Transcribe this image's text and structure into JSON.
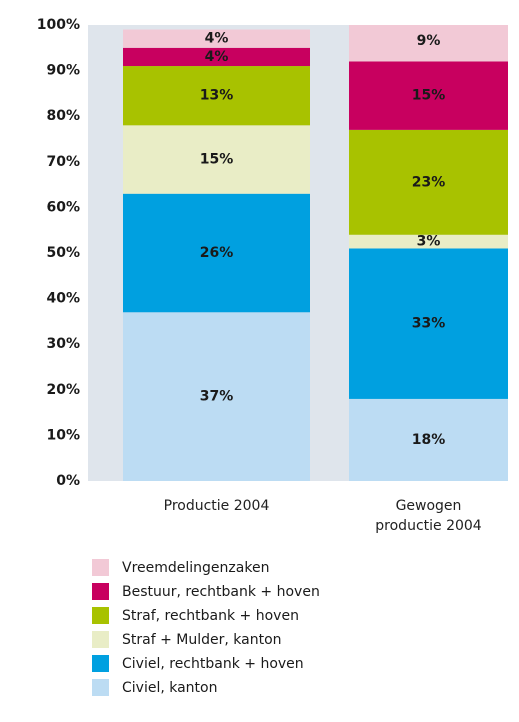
{
  "chart_data": {
    "type": "stacked_bar",
    "categories": [
      "Productie 2004",
      "Gewogen productie 2004"
    ],
    "series": [
      {
        "name": "Civiel, kanton",
        "color": "#bcdcf3",
        "values": [
          37,
          18
        ],
        "value_labels": [
          "37%",
          "18%"
        ]
      },
      {
        "name": "Civiel, rechtbank + hoven",
        "color": "#00a0e0",
        "values": [
          26,
          33
        ],
        "value_labels": [
          "26%",
          "33%"
        ]
      },
      {
        "name": "Straf + Mulder, kanton",
        "color": "#e9edc6",
        "values": [
          15,
          3
        ],
        "value_labels": [
          "15%",
          "3%"
        ]
      },
      {
        "name": "Straf, rechtbank + hoven",
        "color": "#a8c200",
        "values": [
          13,
          23
        ],
        "value_labels": [
          "13%",
          "23%"
        ]
      },
      {
        "name": "Bestuur, rechtbank + hoven",
        "color": "#c8005f",
        "values": [
          4,
          15
        ],
        "value_labels": [
          "4%",
          "15%"
        ]
      },
      {
        "name": "Vreemdelingenzaken",
        "color": "#f2c9d6",
        "values": [
          4,
          9
        ],
        "value_labels": [
          "4%",
          "9%"
        ]
      }
    ],
    "ylim": [
      0,
      100
    ],
    "yticks": [
      {
        "value": 0,
        "label": "0%"
      },
      {
        "value": 10,
        "label": "10%"
      },
      {
        "value": 20,
        "label": "20%"
      },
      {
        "value": 30,
        "label": "30%"
      },
      {
        "value": 40,
        "label": "40%"
      },
      {
        "value": 50,
        "label": "50%"
      },
      {
        "value": 60,
        "label": "60%"
      },
      {
        "value": 70,
        "label": "70%"
      },
      {
        "value": 80,
        "label": "80%"
      },
      {
        "value": 90,
        "label": "90%"
      },
      {
        "value": 100,
        "label": "100%"
      }
    ],
    "legend": "bottom"
  }
}
